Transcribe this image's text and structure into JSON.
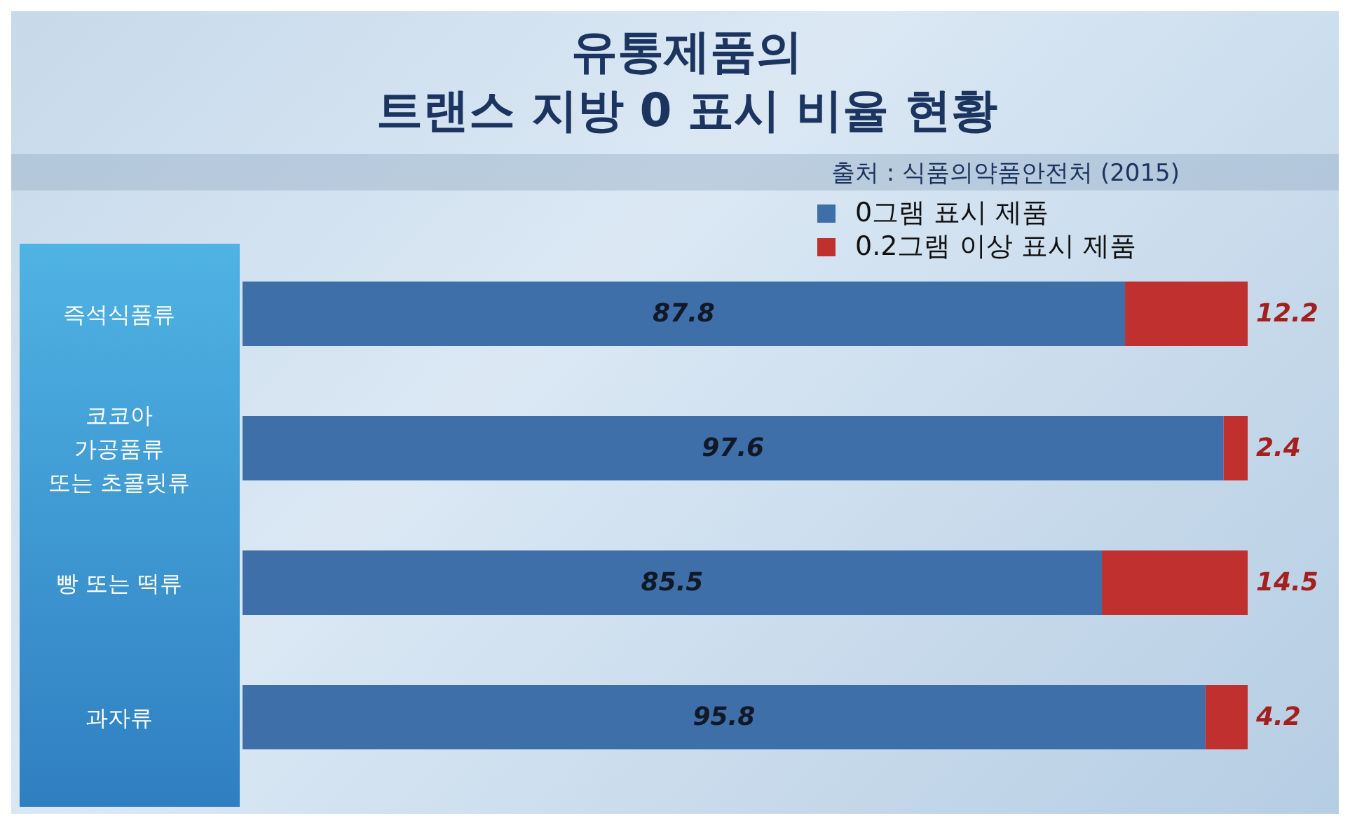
{
  "chart_data": {
    "type": "bar",
    "orientation": "horizontal",
    "stacked": true,
    "title": "유통제품의\n트랜스 지방 0 표시 비율 현황",
    "annotations": [
      "출처 : 식품의약품안전처 (2015)"
    ],
    "categories": [
      "즉석식품류",
      "코코아\n가공품류\n또는 초콜릿류",
      "빵 또는 떡류",
      "과자류"
    ],
    "series": [
      {
        "name": "0그램 표시 제품",
        "color": "#3f6fa8",
        "values": [
          87.8,
          97.6,
          85.5,
          95.8
        ]
      },
      {
        "name": "0.2그램 이상 표시 제품",
        "color": "#c0302f",
        "values": [
          12.2,
          2.4,
          14.5,
          4.2
        ]
      }
    ],
    "xlim": [
      0,
      100
    ],
    "tick_labels": false,
    "data_labels": true,
    "legend": "top right",
    "grid": false
  }
}
